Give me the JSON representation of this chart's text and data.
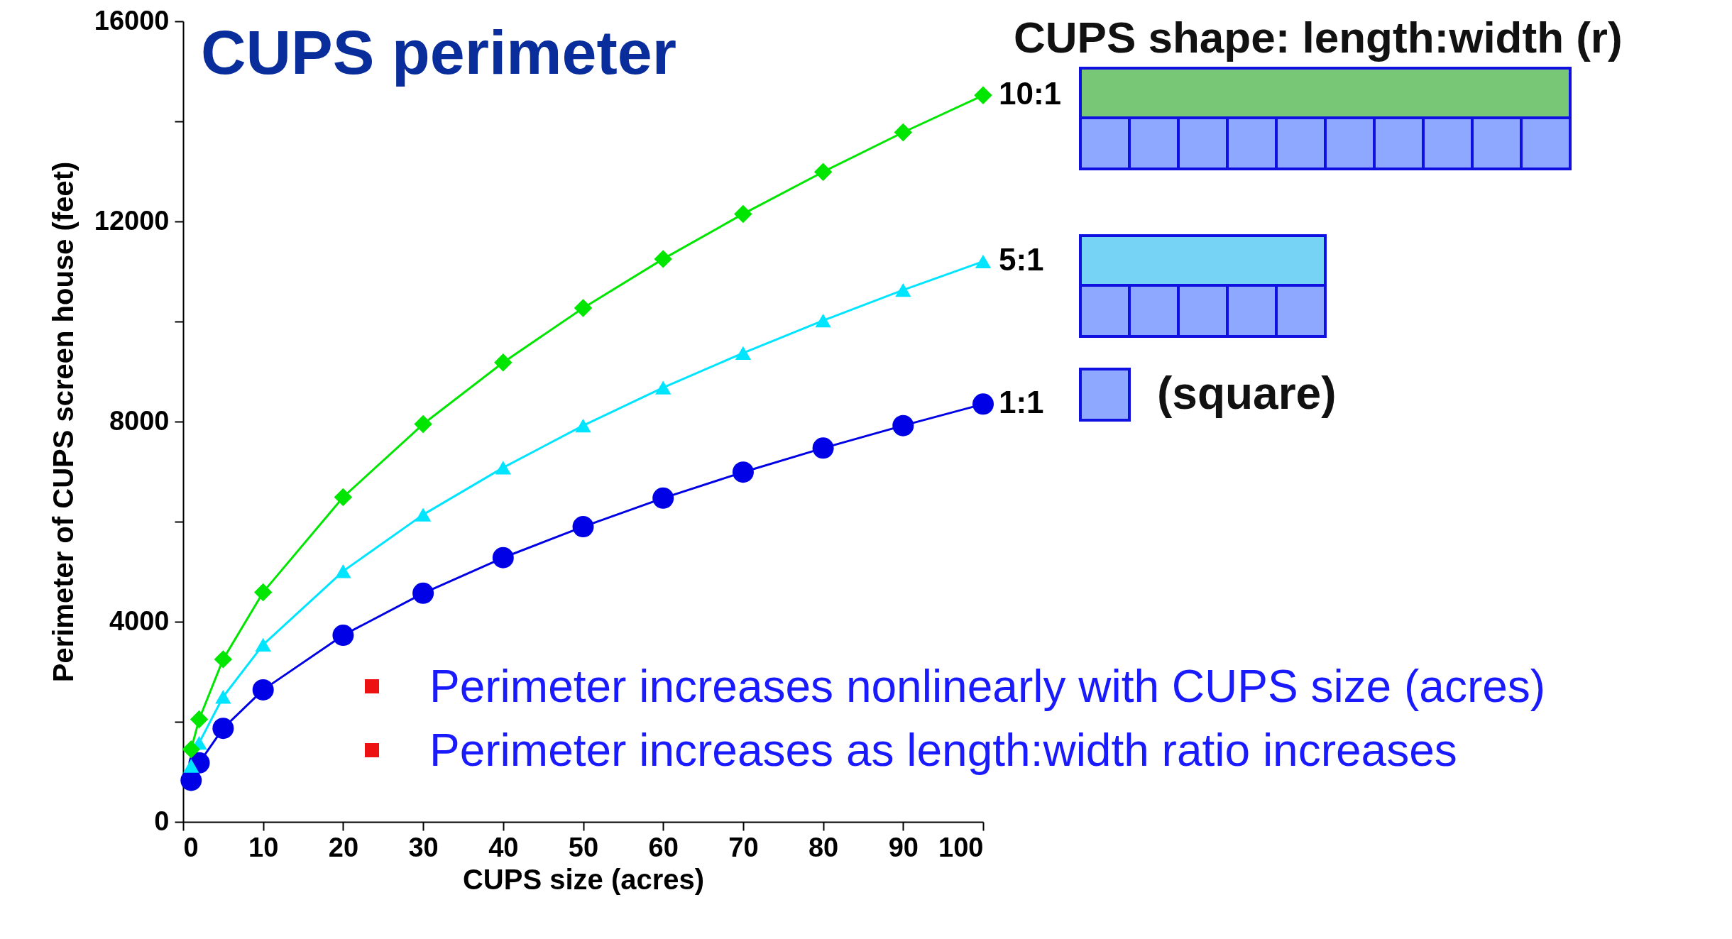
{
  "chart_data": {
    "type": "line",
    "title": "CUPS perimeter",
    "xlabel": "CUPS size (acres)",
    "ylabel": "Perimeter of CUPS screen house (feet)",
    "x": [
      1,
      2,
      5,
      10,
      20,
      30,
      40,
      50,
      60,
      70,
      80,
      90,
      100
    ],
    "series": [
      {
        "name": "10:1",
        "color": "#00e600",
        "marker": "diamond",
        "values": [
          1450,
          2050,
          3250,
          4590,
          6490,
          7950,
          9180,
          10270,
          11250,
          12150,
          12990,
          13780,
          14520
        ]
      },
      {
        "name": "5:1",
        "color": "#00e5ff",
        "marker": "triangle",
        "values": [
          1120,
          1580,
          2500,
          3540,
          5010,
          6140,
          7080,
          7920,
          8680,
          9370,
          10020,
          10630,
          11200
        ]
      },
      {
        "name": "1:1",
        "color": "#0000e6",
        "marker": "circle",
        "values": [
          830,
          1180,
          1870,
          2640,
          3730,
          4570,
          5280,
          5900,
          6470,
          6990,
          7470,
          7920,
          8350
        ]
      }
    ],
    "xlim": [
      0,
      100
    ],
    "ylim": [
      0,
      16000
    ],
    "xticks": [
      0,
      10,
      20,
      30,
      40,
      50,
      60,
      70,
      80,
      90,
      100
    ],
    "yticks": [
      0,
      {
        "value": 2000,
        "label": null
      },
      4000,
      {
        "value": 6000,
        "label": null
      },
      8000,
      {
        "value": 10000,
        "label": null
      },
      12000,
      {
        "value": 14000,
        "label": null
      },
      16000
    ],
    "grid": false,
    "legend": "right",
    "line_style": "solid",
    "annotations": [
      "CUPS shape: length:width (r)",
      "(square)",
      "Perimeter increases nonlinearly with CUPS size (acres)",
      "Perimeter increases as length:width ratio increases"
    ]
  }
}
